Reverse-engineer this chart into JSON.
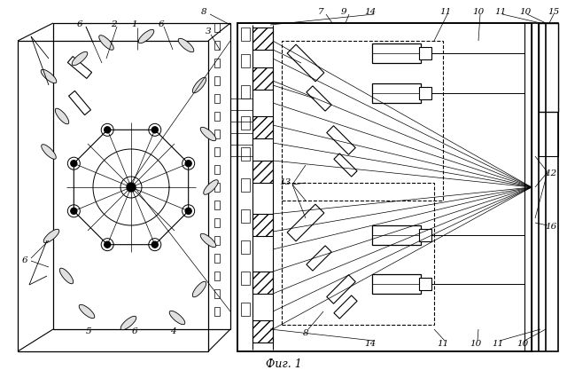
{
  "bg_color": "#ffffff",
  "fig_caption": "Фиг. 1"
}
